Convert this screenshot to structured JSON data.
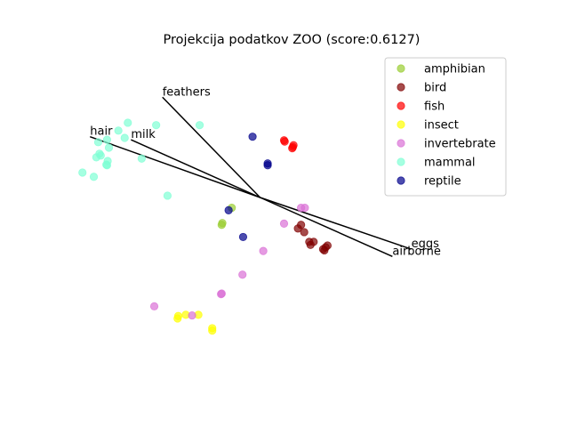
{
  "chart_data": {
    "type": "scatter",
    "title": "Projekcija podatkov ZOO (score:0.6127)",
    "xlabel": "",
    "ylabel": "",
    "axes_visible": false,
    "grid": false,
    "legend_position": "top-right",
    "xlim": [
      -3.0,
      4.0
    ],
    "ylim": [
      -3.0,
      2.4
    ],
    "origin": [
      0.0,
      0.0
    ],
    "vectors": [
      {
        "label": "feathers",
        "x": -1.55,
        "y": 1.65
      },
      {
        "label": "hair",
        "x": -2.7,
        "y": 1.0
      },
      {
        "label": "milk",
        "x": -2.05,
        "y": 0.95
      },
      {
        "label": "eggs",
        "x": 2.4,
        "y": -0.85
      },
      {
        "label": "airborne",
        "x": 2.1,
        "y": -0.97
      }
    ],
    "series": [
      {
        "name": "amphibian",
        "color": "#9acd32",
        "points": [
          [
            -0.45,
            -0.17
          ],
          [
            -0.6,
            -0.42
          ],
          [
            -0.61,
            -0.45
          ]
        ]
      },
      {
        "name": "bird",
        "color": "#800000",
        "points": [
          [
            0.65,
            -0.45
          ],
          [
            0.6,
            -0.51
          ],
          [
            0.7,
            -0.57
          ],
          [
            0.78,
            -0.73
          ],
          [
            0.85,
            -0.73
          ],
          [
            0.8,
            -0.78
          ],
          [
            1.07,
            -0.79
          ],
          [
            1.04,
            -0.82
          ],
          [
            1.0,
            -0.85
          ],
          [
            1.02,
            -0.87
          ]
        ]
      },
      {
        "name": "fish",
        "color": "#ff0000",
        "points": [
          [
            0.38,
            0.94
          ],
          [
            0.39,
            0.92
          ],
          [
            0.53,
            0.86
          ],
          [
            0.52,
            0.83
          ],
          [
            0.51,
            0.81
          ]
        ]
      },
      {
        "name": "insect",
        "color": "#ffff00",
        "points": [
          [
            -1.3,
            -1.95
          ],
          [
            -1.31,
            -1.99
          ],
          [
            -1.18,
            -1.93
          ],
          [
            -0.98,
            -1.93
          ],
          [
            -0.76,
            -2.15
          ],
          [
            -0.76,
            -2.19
          ]
        ]
      },
      {
        "name": "invertebrate",
        "color": "#da70d6",
        "points": [
          [
            0.65,
            -0.17
          ],
          [
            0.71,
            -0.17
          ],
          [
            0.38,
            -0.43
          ],
          [
            0.05,
            -0.88
          ],
          [
            -0.28,
            -1.27
          ],
          [
            -0.61,
            -1.58
          ],
          [
            -0.62,
            -1.59
          ],
          [
            -1.68,
            -1.79
          ],
          [
            -1.08,
            -1.94
          ]
        ]
      },
      {
        "name": "mammal",
        "color": "#7fffd4",
        "points": [
          [
            -2.1,
            1.23
          ],
          [
            -2.25,
            1.1
          ],
          [
            -2.15,
            0.98
          ],
          [
            -2.43,
            0.95
          ],
          [
            -2.57,
            0.91
          ],
          [
            -2.4,
            0.82
          ],
          [
            -2.53,
            0.69
          ],
          [
            -2.55,
            0.72
          ],
          [
            -2.6,
            0.66
          ],
          [
            -2.42,
            0.6
          ],
          [
            -2.44,
            0.54
          ],
          [
            -2.43,
            0.53
          ],
          [
            -1.88,
            0.64
          ],
          [
            -1.65,
            1.19
          ],
          [
            -0.96,
            1.19
          ],
          [
            -2.82,
            0.41
          ],
          [
            -2.64,
            0.34
          ],
          [
            -1.47,
            0.03
          ]
        ]
      },
      {
        "name": "reptile",
        "color": "#00008b",
        "points": [
          [
            -0.12,
            1.0
          ],
          [
            0.12,
            0.56
          ],
          [
            0.12,
            0.53
          ],
          [
            -0.5,
            -0.21
          ],
          [
            -0.27,
            -0.65
          ]
        ]
      }
    ]
  }
}
